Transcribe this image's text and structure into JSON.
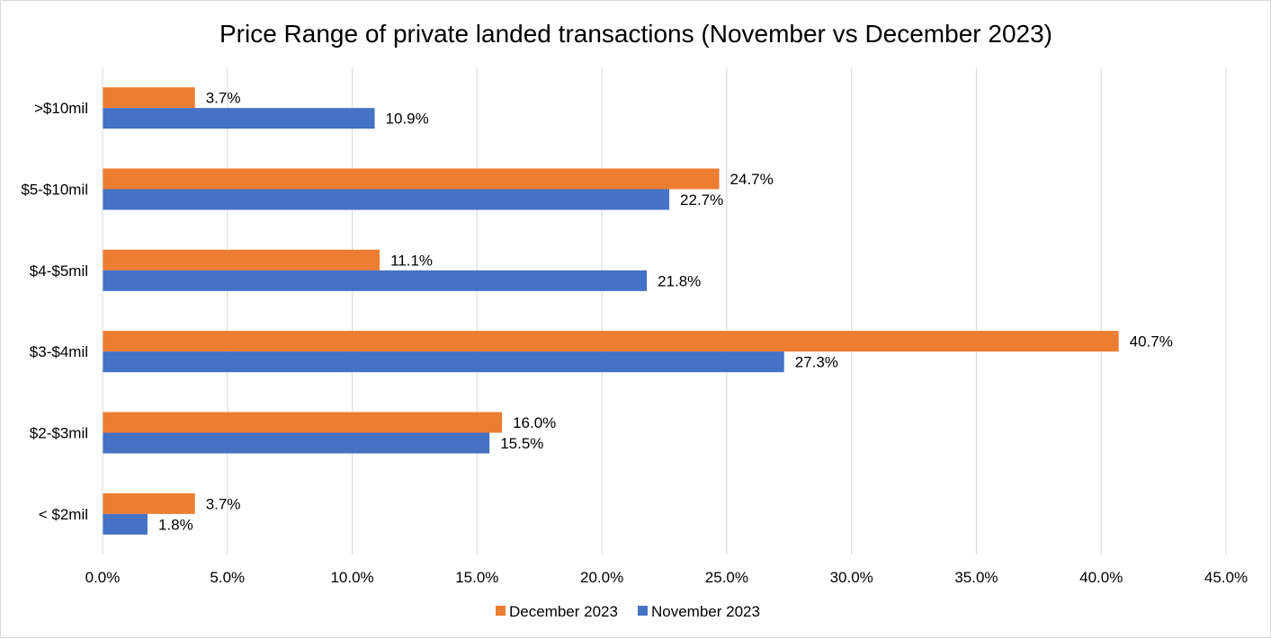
{
  "chart_data": {
    "type": "bar",
    "orientation": "horizontal",
    "title": "Price Range of private landed transactions (November vs December 2023)",
    "categories": [
      ">$10mil",
      "$5-$10mil",
      "$4-$5mil",
      "$3-$4mil",
      "$2-$3mil",
      "< $2mil"
    ],
    "series": [
      {
        "name": "December 2023",
        "color": "#ed7d31",
        "values": [
          3.7,
          24.7,
          11.1,
          40.7,
          16.0,
          3.7
        ],
        "labels": [
          "3.7%",
          "24.7%",
          "11.1%",
          "40.7%",
          "16.0%",
          "3.7%"
        ]
      },
      {
        "name": "November 2023",
        "color": "#4472c4",
        "values": [
          10.9,
          22.7,
          21.8,
          27.3,
          15.5,
          1.8
        ],
        "labels": [
          "10.9%",
          "22.7%",
          "21.8%",
          "27.3%",
          "15.5%",
          "1.8%"
        ]
      }
    ],
    "xlim": [
      0,
      45
    ],
    "xticks": [
      "0.0%",
      "5.0%",
      "10.0%",
      "15.0%",
      "20.0%",
      "25.0%",
      "30.0%",
      "35.0%",
      "40.0%",
      "45.0%"
    ],
    "grid": true,
    "legend_position": "bottom"
  }
}
